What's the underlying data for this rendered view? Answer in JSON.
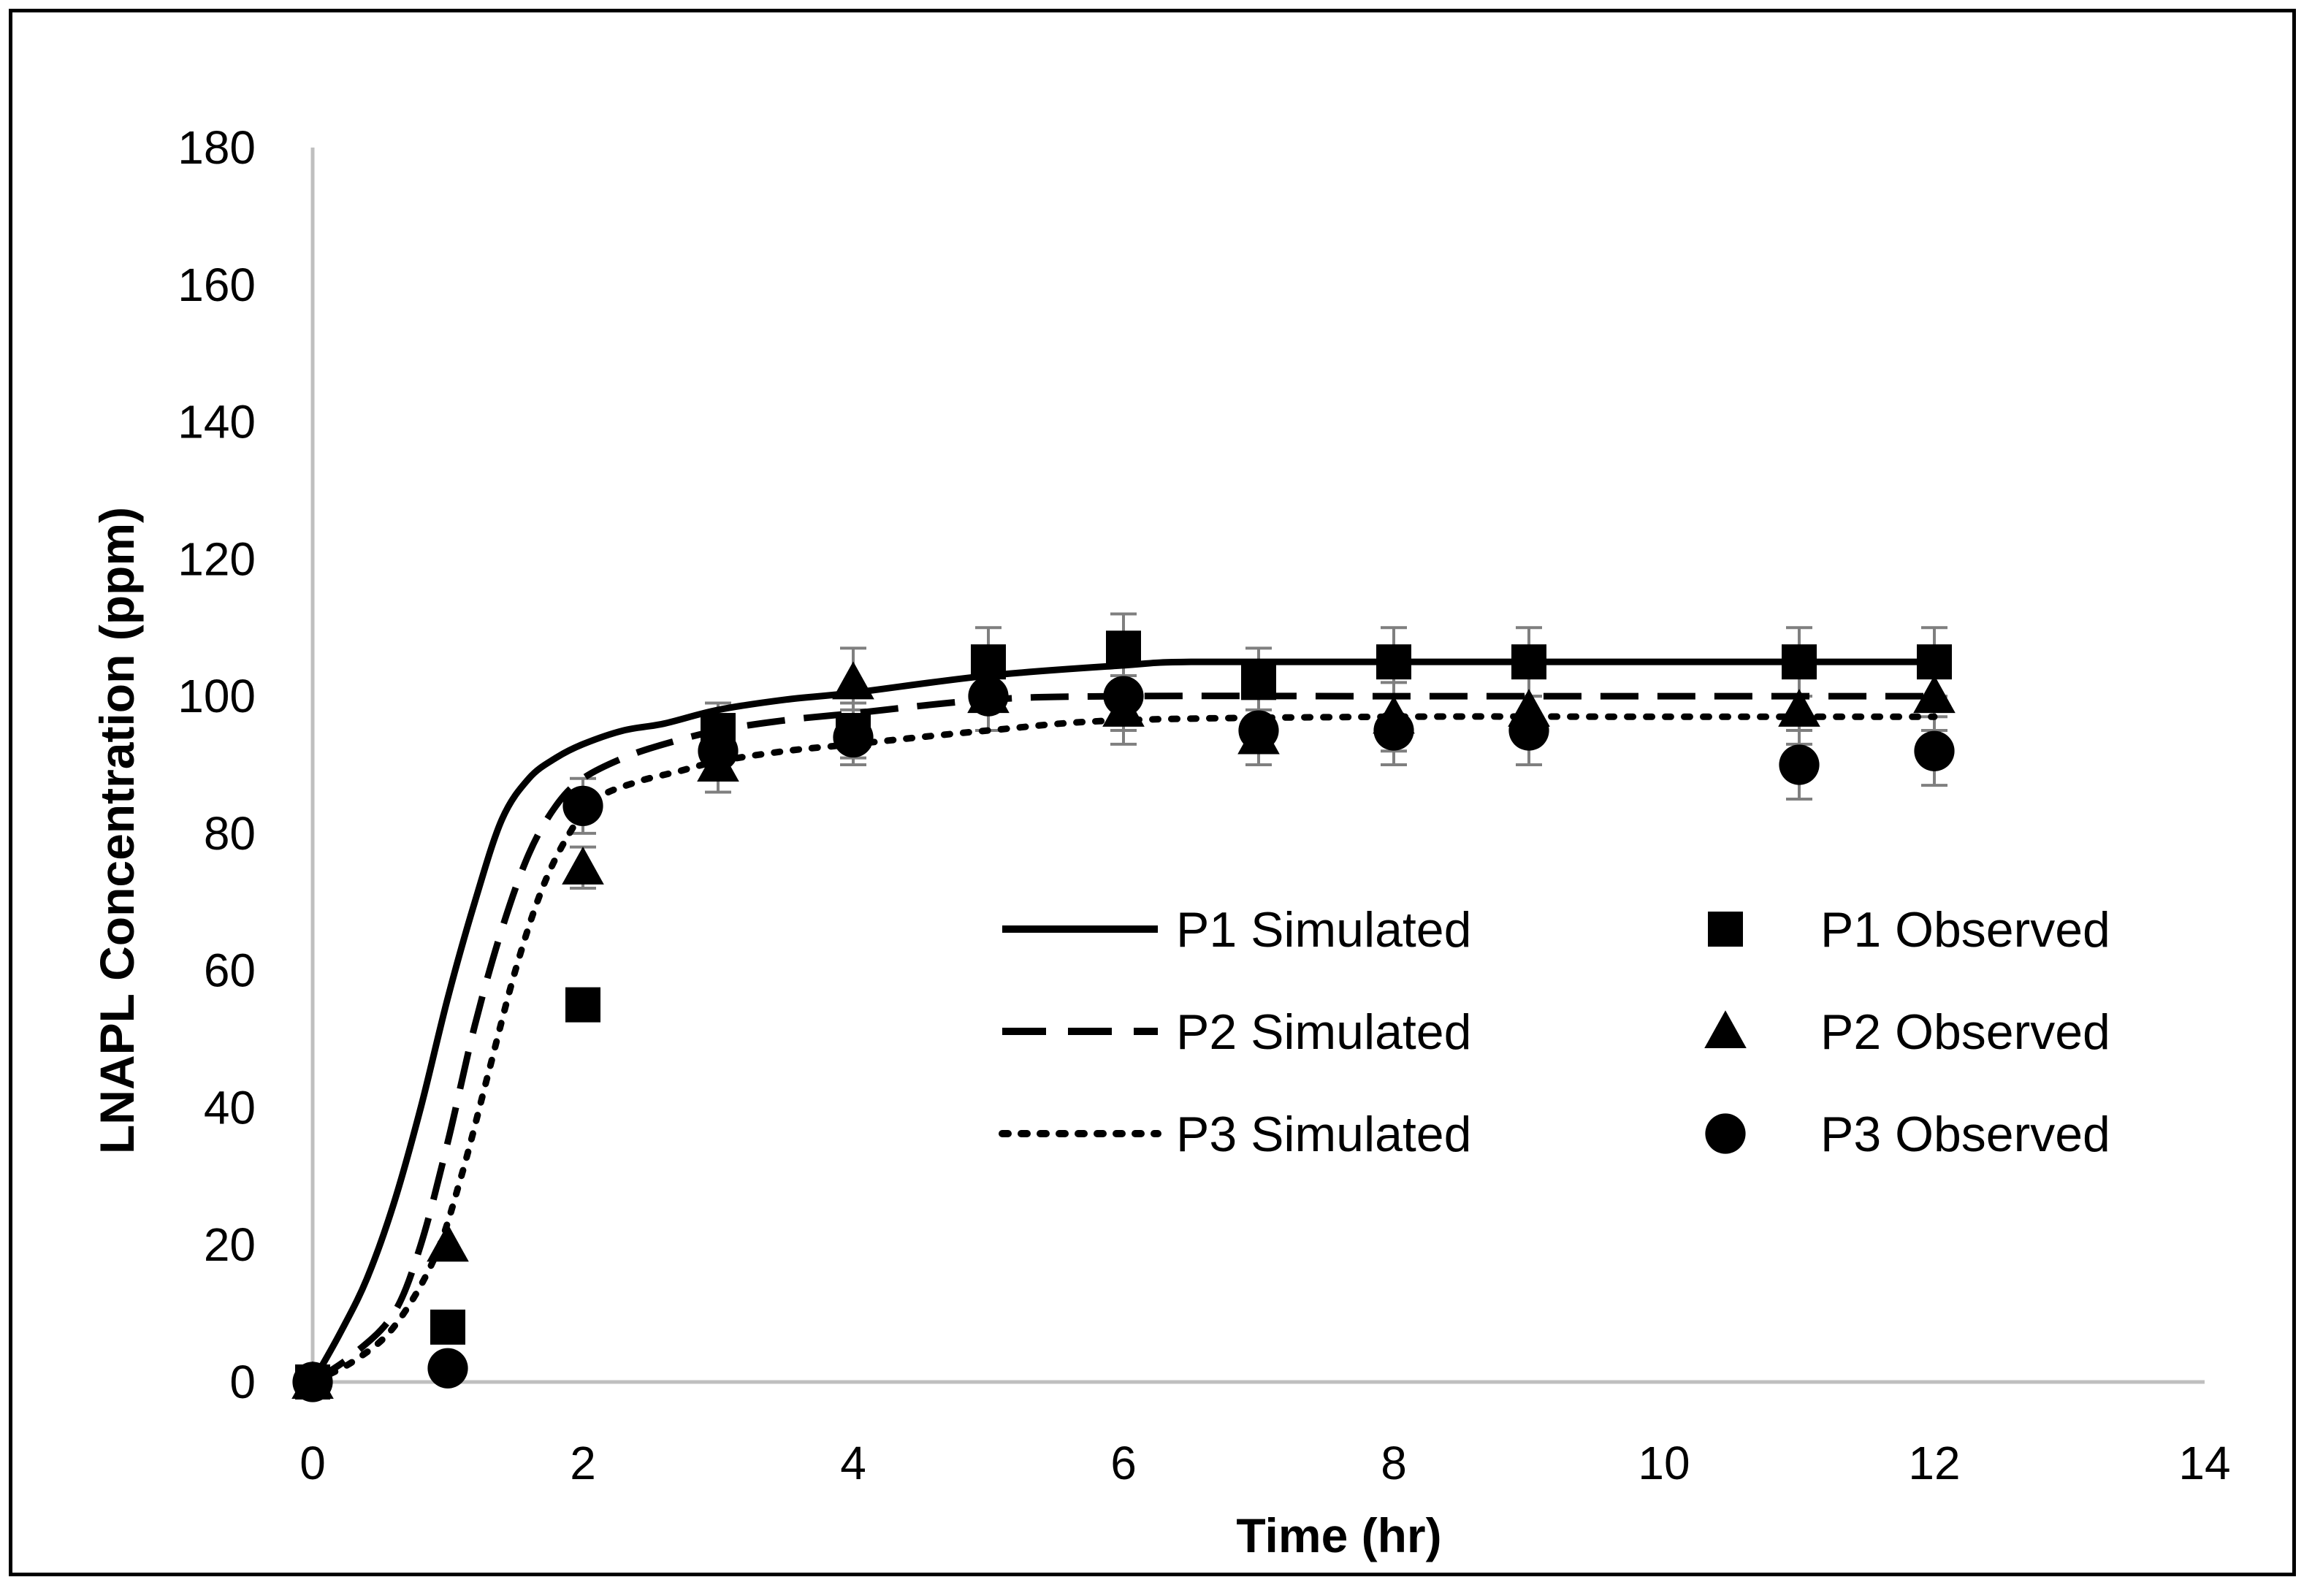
{
  "chart_data": {
    "type": "line",
    "title": "",
    "xlabel": "Time (hr)",
    "ylabel": "LNAPL Concentration (ppm)",
    "xlim": [
      0,
      14
    ],
    "ylim": [
      0,
      180
    ],
    "xticks": [
      0,
      2,
      4,
      6,
      8,
      10,
      12,
      14
    ],
    "yticks": [
      0,
      20,
      40,
      60,
      80,
      100,
      120,
      140,
      160,
      180
    ],
    "grid": false,
    "legend_position": "center-right",
    "simulated": [
      {
        "name": "P1 Simulated",
        "style": "solid",
        "x": [
          0,
          0.2,
          0.4,
          0.6,
          0.8,
          1.0,
          1.2,
          1.4,
          1.6,
          1.8,
          2.0,
          2.3,
          2.6,
          3.0,
          3.5,
          4.0,
          5.0,
          6.0,
          6.5,
          8.0,
          10.0,
          12.0
        ],
        "y": [
          0,
          7,
          15,
          26,
          40,
          56,
          70,
          82,
          88,
          91,
          93,
          95,
          96,
          98,
          99.5,
          100.5,
          103,
          104.5,
          105,
          105,
          105,
          105
        ]
      },
      {
        "name": "P2 Simulated",
        "style": "dashed",
        "x": [
          0,
          0.3,
          0.6,
          0.8,
          1.0,
          1.2,
          1.4,
          1.6,
          1.8,
          2.0,
          2.3,
          2.6,
          3.0,
          3.5,
          4.0,
          5.0,
          6.0,
          8.0,
          10.0,
          12.0
        ],
        "y": [
          0,
          4,
          10,
          20,
          35,
          52,
          66,
          77,
          84,
          88,
          91,
          93,
          95,
          96.5,
          97.5,
          99.5,
          100,
          100,
          100,
          100
        ]
      },
      {
        "name": "P3 Simulated",
        "style": "dotted",
        "x": [
          0,
          0.3,
          0.6,
          0.9,
          1.1,
          1.3,
          1.5,
          1.7,
          1.9,
          2.1,
          2.4,
          2.7,
          3.0,
          3.5,
          4.0,
          5.0,
          6.0,
          8.0,
          10.0,
          12.0
        ],
        "y": [
          0,
          3,
          8,
          18,
          30,
          45,
          60,
          72,
          80,
          85,
          87.5,
          89,
          90.5,
          92,
          93,
          95,
          96.5,
          97,
          97,
          97
        ]
      }
    ],
    "observed": [
      {
        "name": "P1 Observed",
        "marker": "square",
        "x": [
          0,
          1,
          2,
          3,
          4,
          5,
          6,
          7,
          8,
          9,
          11,
          12
        ],
        "y": [
          0,
          8,
          55,
          95,
          95,
          105,
          107,
          102,
          105,
          105,
          105,
          105
        ],
        "err": [
          0,
          0,
          2,
          4,
          4,
          5,
          5,
          5,
          5,
          5,
          5,
          5
        ]
      },
      {
        "name": "P2 Observed",
        "marker": "triangle",
        "x": [
          0,
          1,
          2,
          3,
          4,
          5,
          6,
          7,
          8,
          9,
          11,
          12
        ],
        "y": [
          0,
          20,
          75,
          90,
          102,
          100,
          98,
          94,
          97,
          98,
          98,
          100
        ],
        "err": [
          0,
          0,
          3,
          4,
          5,
          5,
          5,
          4,
          5,
          5,
          5,
          5
        ]
      },
      {
        "name": "P3 Observed",
        "marker": "circle",
        "x": [
          0,
          1,
          2,
          3,
          4,
          5,
          6,
          7,
          8,
          9,
          11,
          12
        ],
        "y": [
          0,
          2,
          84,
          92,
          94,
          100,
          100,
          95,
          95,
          95,
          90,
          92
        ],
        "err": [
          0,
          0,
          4,
          4,
          4,
          5,
          5,
          5,
          5,
          5,
          5,
          5
        ]
      }
    ],
    "legend": [
      {
        "label": "P1 Simulated",
        "kind": "line",
        "style": "solid"
      },
      {
        "label": "P2 Simulated",
        "kind": "line",
        "style": "dashed"
      },
      {
        "label": "P3 Simulated",
        "kind": "line",
        "style": "dotted"
      },
      {
        "label": "P1 Observed",
        "kind": "marker",
        "marker": "square"
      },
      {
        "label": "P2 Observed",
        "kind": "marker",
        "marker": "triangle"
      },
      {
        "label": "P3 Observed",
        "kind": "marker",
        "marker": "circle"
      }
    ]
  }
}
